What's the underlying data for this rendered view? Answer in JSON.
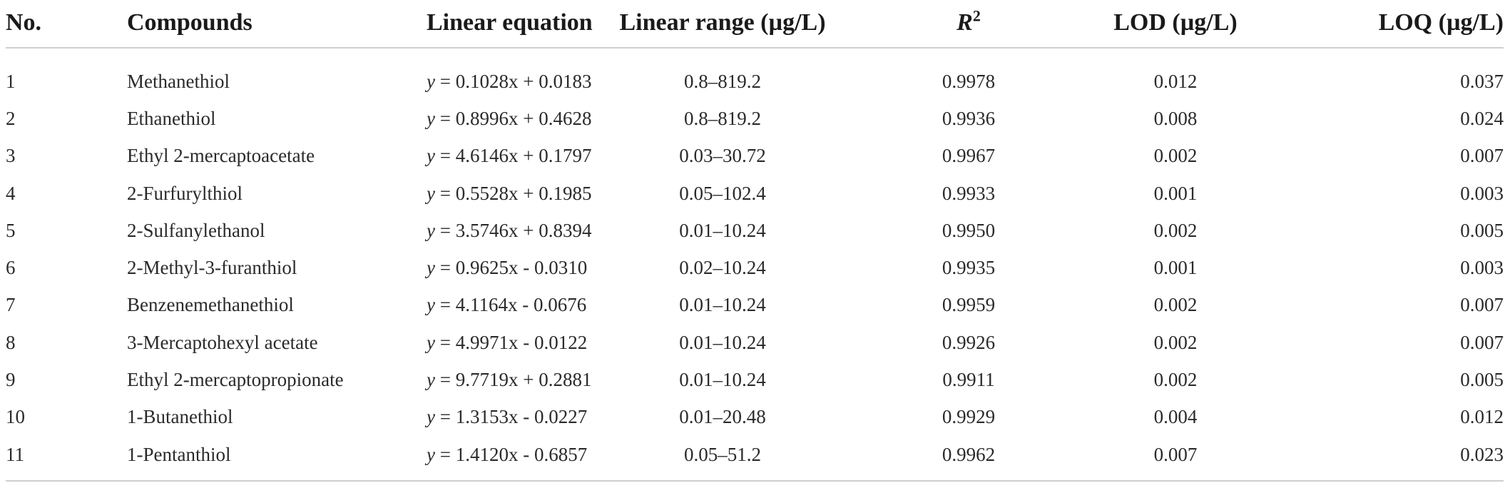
{
  "table": {
    "headers": {
      "no": "No.",
      "compounds": "Compounds",
      "linear_equation": "Linear equation",
      "linear_range": "Linear range (µg/L)",
      "r2_base": "R",
      "r2_exp": "2",
      "lod": "LOD (µg/L)",
      "loq": "LOQ (µg/L)"
    },
    "rows": [
      {
        "no": "1",
        "compound": "Methanethiol",
        "eq_var": "y",
        "eq_rest": " = 0.1028x + 0.0183",
        "range": "0.8–819.2",
        "r2": "0.9978",
        "lod": "0.012",
        "loq": "0.037"
      },
      {
        "no": "2",
        "compound": "Ethanethiol",
        "eq_var": "y",
        "eq_rest": " = 0.8996x + 0.4628",
        "range": "0.8–819.2",
        "r2": "0.9936",
        "lod": "0.008",
        "loq": "0.024"
      },
      {
        "no": "3",
        "compound": "Ethyl 2-mercaptoacetate",
        "eq_var": "y",
        "eq_rest": " = 4.6146x + 0.1797",
        "range": "0.03–30.72",
        "r2": "0.9967",
        "lod": "0.002",
        "loq": "0.007"
      },
      {
        "no": "4",
        "compound": "2-Furfurylthiol",
        "eq_var": "y",
        "eq_rest": " = 0.5528x + 0.1985",
        "range": "0.05–102.4",
        "r2": "0.9933",
        "lod": "0.001",
        "loq": "0.003"
      },
      {
        "no": "5",
        "compound": "2-Sulfanylethanol",
        "eq_var": "y",
        "eq_rest": " = 3.5746x + 0.8394",
        "range": "0.01–10.24",
        "r2": "0.9950",
        "lod": "0.002",
        "loq": "0.005"
      },
      {
        "no": "6",
        "compound": "2-Methyl-3-furanthiol",
        "eq_var": "y",
        "eq_rest": " = 0.9625x - 0.0310",
        "range": "0.02–10.24",
        "r2": "0.9935",
        "lod": "0.001",
        "loq": "0.003"
      },
      {
        "no": "7",
        "compound": "Benzenemethanethiol",
        "eq_var": "y",
        "eq_rest": " = 4.1164x - 0.0676",
        "range": "0.01–10.24",
        "r2": "0.9959",
        "lod": "0.002",
        "loq": "0.007"
      },
      {
        "no": "8",
        "compound": "3-Mercaptohexyl acetate",
        "eq_var": "y",
        "eq_rest": " = 4.9971x - 0.0122",
        "range": "0.01–10.24",
        "r2": "0.9926",
        "lod": "0.002",
        "loq": "0.007"
      },
      {
        "no": "9",
        "compound": "Ethyl 2-mercaptopropionate",
        "eq_var": "y",
        "eq_rest": " = 9.7719x + 0.2881",
        "range": "0.01–10.24",
        "r2": "0.9911",
        "lod": "0.002",
        "loq": "0.005"
      },
      {
        "no": "10",
        "compound": "1-Butanethiol",
        "eq_var": "y",
        "eq_rest": " = 1.3153x - 0.0227",
        "range": "0.01–20.48",
        "r2": "0.9929",
        "lod": "0.004",
        "loq": "0.012"
      },
      {
        "no": "11",
        "compound": "1-Pentanthiol",
        "eq_var": "y",
        "eq_rest": " = 1.4120x - 0.6857",
        "range": "0.05–51.2",
        "r2": "0.9962",
        "lod": "0.007",
        "loq": "0.023"
      }
    ]
  }
}
